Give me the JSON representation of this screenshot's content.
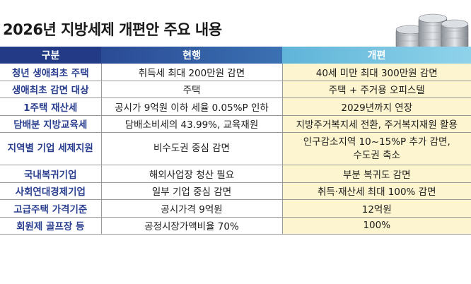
{
  "title": "2026년 지방세제 개편안 주요 내용",
  "icon": "coin-stack-icon",
  "colors": {
    "header_category": "#233a86",
    "header_current": "#3b71b3",
    "header_revised": "#7cc8e6",
    "category_text": "#2a3f8f",
    "revised_bg": "#fdf5cf"
  },
  "table": {
    "headers": [
      "구분",
      "현행",
      "개편"
    ],
    "rows": [
      {
        "category": "청년 생애최초 주택",
        "current": "취득세 최대 200만원 감면",
        "revised": "40세 미만 최대 300만원 감면"
      },
      {
        "category": "생애최초 감면 대상",
        "current": "주택",
        "revised": "주택 + 주거용 오피스텔"
      },
      {
        "category": "1주택 재산세",
        "current": "공시가 9억원 이하 세율 0.05%P 인하",
        "revised": "2029년까지 연장"
      },
      {
        "category": "담배분 지방교육세",
        "current": "담배소비세의 43.99%, 교육재원",
        "revised": "지방주거복지세 전환, 주거복지재원 활용"
      },
      {
        "category": "지역별 기업 세제지원",
        "current": "비수도권 중심 감면",
        "revised": "인구감소지역 10~15%P 추가 감면,",
        "revised2": "수도권 축소"
      },
      {
        "category": "국내복귀기업",
        "current": "해외사업장 청산 필요",
        "revised": "부분 복귀도 감면"
      },
      {
        "category": "사회연대경제기업",
        "current": "일부 기업 중심 감면",
        "revised": "취득·재산세 최대 100% 감면"
      },
      {
        "category": "고급주택 가격기준",
        "current": "공시가격 9억원",
        "revised": "12억원"
      },
      {
        "category": "회원제 골프장 등",
        "current": "공정시장가액비율 70%",
        "revised": "100%"
      }
    ]
  }
}
